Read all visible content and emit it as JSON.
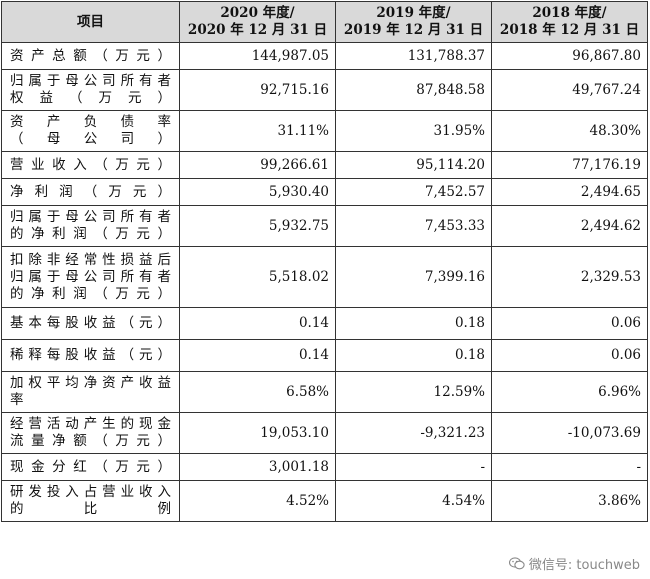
{
  "table": {
    "headers": [
      [
        "项目"
      ],
      [
        "2020 年度/",
        "2020 年 12 月 31 日"
      ],
      [
        "2019 年度/",
        "2019 年 12 月 31 日"
      ],
      [
        "2018 年度/",
        "2018 年 12 月 31 日"
      ]
    ],
    "rows": [
      {
        "label": [
          "资产总额（万元）"
        ],
        "values": [
          "144,987.05",
          "131,788.37",
          "96,867.80"
        ]
      },
      {
        "label": [
          "归属于母公司所有者",
          "权益（万元）"
        ],
        "values": [
          "92,715.16",
          "87,848.58",
          "49,767.24"
        ]
      },
      {
        "label": [
          "资产负债率",
          "（母公司）"
        ],
        "values": [
          "31.11%",
          "31.95%",
          "48.30%"
        ]
      },
      {
        "label": [
          "营业收入（万元）"
        ],
        "values": [
          "99,266.61",
          "95,114.20",
          "77,176.19"
        ]
      },
      {
        "label": [
          "净利润（万元）"
        ],
        "values": [
          "5,930.40",
          "7,452.57",
          "2,494.65"
        ]
      },
      {
        "label": [
          "归属于母公司所有者",
          "的净利润（万元）"
        ],
        "values": [
          "5,932.75",
          "7,453.33",
          "2,494.62"
        ]
      },
      {
        "label": [
          "扣除非经常性损益后",
          "归属于母公司所有者",
          "的净利润（万元）"
        ],
        "values": [
          "5,518.02",
          "7,399.16",
          "2,329.53"
        ]
      },
      {
        "label": [
          "基本每股收益（元）"
        ],
        "values": [
          "0.14",
          "0.18",
          "0.06"
        ]
      },
      {
        "label": [
          "稀释每股收益（元）"
        ],
        "values": [
          "0.14",
          "0.18",
          "0.06"
        ]
      },
      {
        "label": [
          "加权平均净资产收益",
          "率"
        ],
        "values": [
          "6.58%",
          "12.59%",
          "6.96%"
        ]
      },
      {
        "label": [
          "经营活动产生的现金",
          "流量净额（万元）"
        ],
        "values": [
          "19,053.10",
          "-9,321.23",
          "-10,073.69"
        ]
      },
      {
        "label": [
          "现金分红（万元）"
        ],
        "values": [
          "3,001.18",
          "-",
          "-"
        ]
      },
      {
        "label": [
          "研发投入占营业收入",
          "的比例"
        ],
        "values": [
          "4.52%",
          "4.54%",
          "3.86%"
        ]
      }
    ]
  },
  "watermark": {
    "text": "微信号: touchweb",
    "icon": "wechat-icon"
  }
}
